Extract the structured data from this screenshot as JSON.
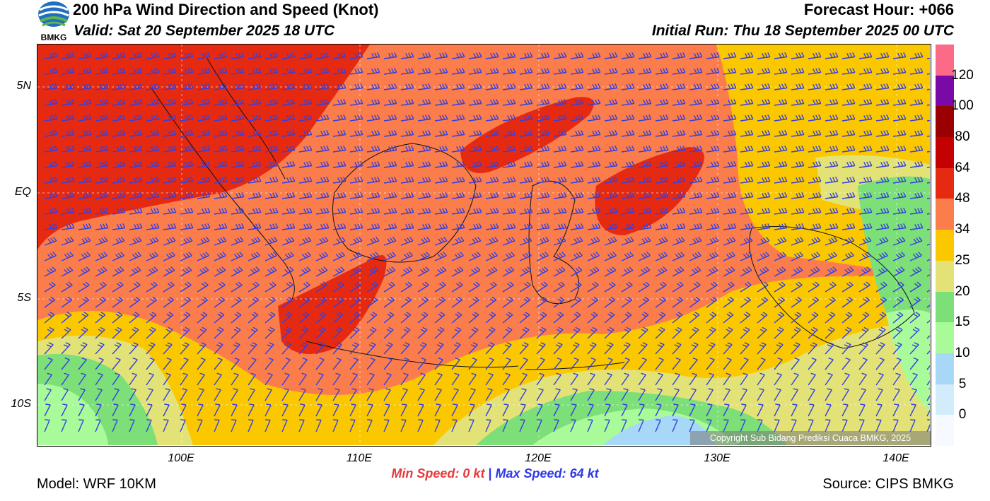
{
  "header": {
    "title": "200 hPa Wind Direction and Speed (Knot)",
    "valid": "Valid: Sat 20 September 2025 18 UTC",
    "forecast_hour": "Forecast Hour: +066",
    "initial_run": "Initial Run: Thu 18 September 2025 00 UTC",
    "logo_text": "BMKG"
  },
  "axes": {
    "lat_labels": [
      "5N",
      "EQ",
      "5S",
      "10S"
    ],
    "lon_labels": [
      "100E",
      "110E",
      "120E",
      "130E",
      "140E"
    ]
  },
  "colorbar": {
    "labels": [
      "0",
      "5",
      "10",
      "15",
      "20",
      "25",
      "34",
      "48",
      "64",
      "80",
      "100",
      "120"
    ],
    "colors": [
      "#f6f9ff",
      "#d3ecfb",
      "#a7d8f7",
      "#a8fb98",
      "#7ddf77",
      "#e3e277",
      "#fbc800",
      "#fb7d4b",
      "#e62a12",
      "#c40000",
      "#9b0000",
      "#7a0aa8",
      "#fb6a86"
    ]
  },
  "speed_summary": {
    "min_label": "Min Speed:",
    "min_value": "0 kt",
    "separator": "|",
    "max_label": "Max Speed:",
    "max_value": "64 kt"
  },
  "footer": {
    "model": "Model: WRF 10KM",
    "source": "Source: CIPS BMKG",
    "copyright": "Copyright Sub Bidang Prediksi Cuaca BMKG, 2025"
  },
  "colors": {
    "barb": "#3340e0",
    "min_speed": "#e8393a",
    "max_speed": "#2d38e6"
  }
}
